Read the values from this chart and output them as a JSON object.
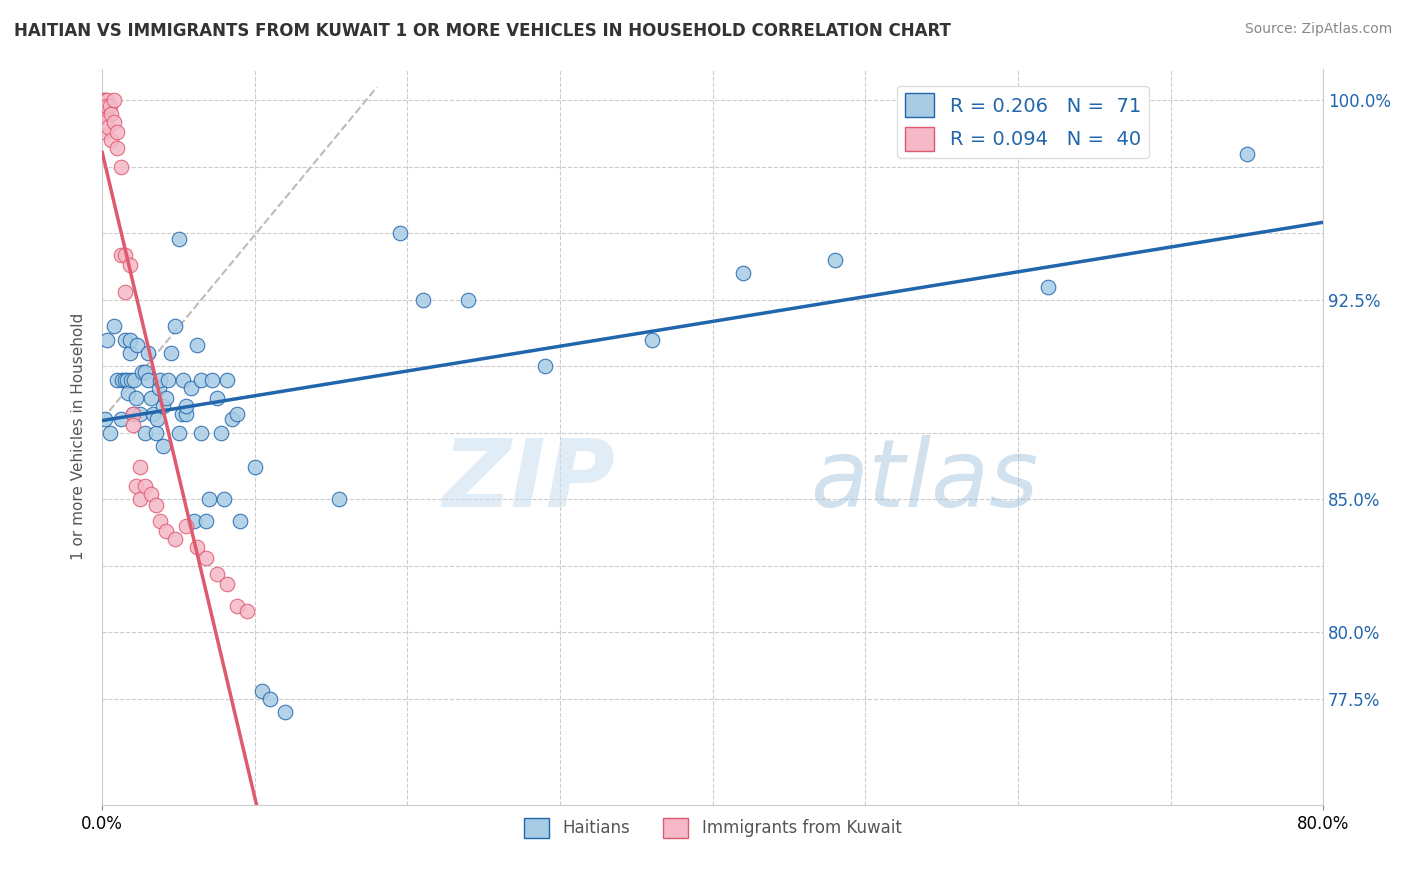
{
  "title": "HAITIAN VS IMMIGRANTS FROM KUWAIT 1 OR MORE VEHICLES IN HOUSEHOLD CORRELATION CHART",
  "source": "Source: ZipAtlas.com",
  "ylabel": "1 or more Vehicles in Household",
  "legend_r1": "R = 0.206",
  "legend_n1": "N =  71",
  "legend_r2": "R = 0.094",
  "legend_n2": "N =  40",
  "legend_label1": "Haitians",
  "legend_label2": "Immigrants from Kuwait",
  "color_blue": "#a8cce4",
  "color_pink": "#f4b8c8",
  "color_trendline_blue": "#2166ac",
  "color_trendline_pink": "#e05a6e",
  "color_dashed": "#bbbbbb",
  "blue_x": [
    0.002,
    0.003,
    0.005,
    0.008,
    0.01,
    0.012,
    0.013,
    0.015,
    0.015,
    0.016,
    0.017,
    0.018,
    0.018,
    0.019,
    0.02,
    0.021,
    0.022,
    0.023,
    0.025,
    0.026,
    0.028,
    0.028,
    0.03,
    0.03,
    0.032,
    0.033,
    0.035,
    0.036,
    0.037,
    0.038,
    0.04,
    0.04,
    0.042,
    0.043,
    0.045,
    0.048,
    0.05,
    0.05,
    0.052,
    0.053,
    0.055,
    0.055,
    0.058,
    0.06,
    0.062,
    0.065,
    0.065,
    0.068,
    0.07,
    0.072,
    0.075,
    0.078,
    0.08,
    0.082,
    0.085,
    0.088,
    0.09,
    0.1,
    0.105,
    0.11,
    0.12,
    0.155,
    0.195,
    0.21,
    0.24,
    0.29,
    0.36,
    0.42,
    0.48,
    0.62,
    0.75
  ],
  "blue_y": [
    0.88,
    0.91,
    0.875,
    0.915,
    0.895,
    0.88,
    0.895,
    0.895,
    0.91,
    0.895,
    0.89,
    0.905,
    0.91,
    0.895,
    0.882,
    0.895,
    0.888,
    0.908,
    0.882,
    0.898,
    0.875,
    0.898,
    0.895,
    0.905,
    0.888,
    0.882,
    0.875,
    0.88,
    0.892,
    0.895,
    0.885,
    0.87,
    0.888,
    0.895,
    0.905,
    0.915,
    0.948,
    0.875,
    0.882,
    0.895,
    0.882,
    0.885,
    0.892,
    0.842,
    0.908,
    0.895,
    0.875,
    0.842,
    0.85,
    0.895,
    0.888,
    0.875,
    0.85,
    0.895,
    0.88,
    0.882,
    0.842,
    0.862,
    0.778,
    0.775,
    0.77,
    0.85,
    0.95,
    0.925,
    0.925,
    0.9,
    0.91,
    0.935,
    0.94,
    0.93,
    0.98
  ],
  "pink_x": [
    0.001,
    0.001,
    0.001,
    0.001,
    0.002,
    0.002,
    0.002,
    0.003,
    0.003,
    0.004,
    0.005,
    0.006,
    0.006,
    0.008,
    0.008,
    0.01,
    0.01,
    0.012,
    0.012,
    0.015,
    0.015,
    0.018,
    0.02,
    0.02,
    0.022,
    0.025,
    0.025,
    0.028,
    0.032,
    0.035,
    0.038,
    0.042,
    0.048,
    0.055,
    0.062,
    0.068,
    0.075,
    0.082,
    0.088,
    0.095
  ],
  "pink_y": [
    1.0,
    0.998,
    0.995,
    0.988,
    1.0,
    0.998,
    0.992,
    1.0,
    0.998,
    0.99,
    0.998,
    0.995,
    0.985,
    1.0,
    0.992,
    0.982,
    0.988,
    0.975,
    0.942,
    0.928,
    0.942,
    0.938,
    0.882,
    0.878,
    0.855,
    0.85,
    0.862,
    0.855,
    0.852,
    0.848,
    0.842,
    0.838,
    0.835,
    0.84,
    0.832,
    0.828,
    0.822,
    0.818,
    0.81,
    0.808
  ],
  "xmin": 0.0,
  "xmax": 0.8,
  "ymin": 0.735,
  "ymax": 1.012,
  "right_ticks": [
    0.775,
    0.8,
    0.825,
    0.85,
    0.875,
    0.9,
    0.925,
    0.95,
    0.975,
    1.0
  ],
  "right_labels": [
    "77.5%",
    "80.0%",
    "",
    "85.0%",
    "",
    "",
    "92.5%",
    "",
    "",
    "100.0%"
  ],
  "watermark_zip": "ZIP",
  "watermark_atlas": "atlas"
}
